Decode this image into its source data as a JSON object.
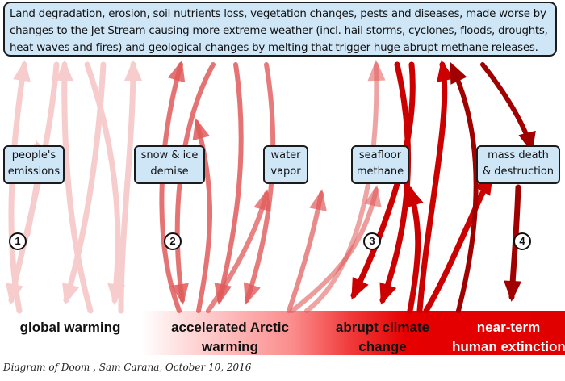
{
  "top_box": {
    "lines": [
      "Land degradation, erosion, soil nutrients loss, vegetation changes, pests and diseases, made worse by",
      "changes to the Jet Stream causing more extreme weather (incl. hail storms, cyclones, floods, droughts,",
      "heat waves and fires) and geological changes by melting that trigger huge abrupt methane releases."
    ]
  },
  "nodes": [
    {
      "lines": [
        "people's",
        "emissions"
      ]
    },
    {
      "lines": [
        "snow & ice",
        "demise"
      ]
    },
    {
      "lines": [
        "water",
        "vapor"
      ]
    },
    {
      "lines": [
        "seafloor",
        "methane"
      ]
    },
    {
      "lines": [
        "mass death",
        "& destruction"
      ]
    }
  ],
  "stage_numbers": [
    "1",
    "2",
    "3",
    "4"
  ],
  "outcomes": [
    {
      "lines": [
        "global warming"
      ]
    },
    {
      "lines": [
        "accelerated Arctic",
        "warming"
      ]
    },
    {
      "lines": [
        "abrupt climate",
        "change"
      ]
    },
    {
      "lines": [
        "near-term",
        "human extinction"
      ]
    }
  ],
  "caption": "Diagram of Doom , Sam Carana, October 10, 2016",
  "colors": {
    "box_fill": "#cfe6f7",
    "stage1_arrow": "#f6cccc",
    "stage2_arrow": "#e15a5a",
    "stage3_arrow": "#cc0000",
    "stage4_arrow": "#a00000",
    "band_light": "#ffffff",
    "band_dark": "#e00000"
  }
}
